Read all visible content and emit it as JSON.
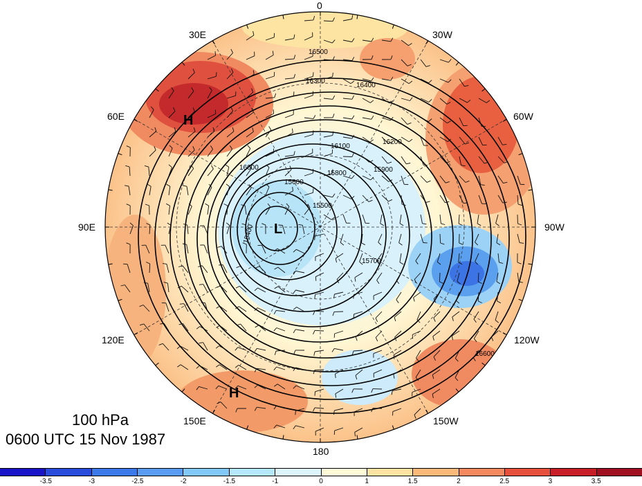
{
  "title": {
    "level": "100 hPa",
    "time": "0600 UTC 15 Nov 1987"
  },
  "longitude_labels": [
    "0",
    "30W",
    "60W",
    "90W",
    "120W",
    "150W",
    "180",
    "150E",
    "120E",
    "90E",
    "60E",
    "30E"
  ],
  "contour_labels": [
    "15400",
    "15500",
    "15600",
    "15700",
    "15800",
    "15900",
    "16000",
    "16100",
    "16200",
    "16300",
    "16400",
    "16500",
    "16600"
  ],
  "pressure_centers": [
    {
      "label": "H",
      "location": "near 60E"
    },
    {
      "label": "L",
      "location": "near 90E"
    },
    {
      "label": "H",
      "location": "near 150E"
    }
  ],
  "colorbar": {
    "tick_labels": [
      "-3.5",
      "-3",
      "-2.5",
      "-2",
      "-1.5",
      "-1",
      "0",
      "1",
      "1.5",
      "2",
      "2.5",
      "3",
      "3.5"
    ],
    "colors": [
      "#1a14c8",
      "#2a4cdc",
      "#3c7aeb",
      "#5a9cf2",
      "#82c8f8",
      "#b4e8fa",
      "#dcf6fc",
      "#fffbd8",
      "#fde4a2",
      "#fbba7a",
      "#f4885e",
      "#e8503e",
      "#c81e28",
      "#a01020"
    ]
  }
}
